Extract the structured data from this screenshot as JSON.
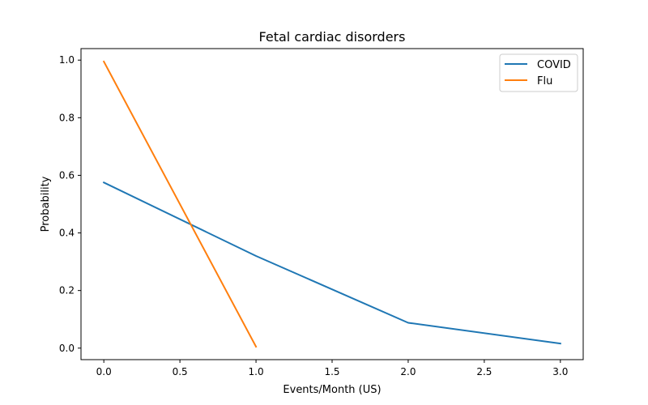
{
  "chart_data": {
    "type": "line",
    "title": "Fetal cardiac disorders",
    "xlabel": "Events/Month (US)",
    "ylabel": "Probability",
    "xlim": [
      -0.15,
      3.15
    ],
    "ylim": [
      -0.04,
      1.04
    ],
    "x_ticks": [
      0.0,
      0.5,
      1.0,
      1.5,
      2.0,
      2.5,
      3.0
    ],
    "x_tick_labels": [
      "0.0",
      "0.5",
      "1.0",
      "1.5",
      "2.0",
      "2.5",
      "3.0"
    ],
    "y_ticks": [
      0.0,
      0.2,
      0.4,
      0.6,
      0.8,
      1.0
    ],
    "y_tick_labels": [
      "0.0",
      "0.2",
      "0.4",
      "0.6",
      "0.8",
      "1.0"
    ],
    "grid": false,
    "legend_position": "top-right",
    "series": [
      {
        "name": "COVID",
        "color": "#1f77b4",
        "x": [
          0,
          1,
          2,
          3
        ],
        "y": [
          0.575,
          0.32,
          0.088,
          0.016
        ]
      },
      {
        "name": "Flu",
        "color": "#ff7f0e",
        "x": [
          0,
          1
        ],
        "y": [
          0.995,
          0.005
        ]
      }
    ]
  }
}
